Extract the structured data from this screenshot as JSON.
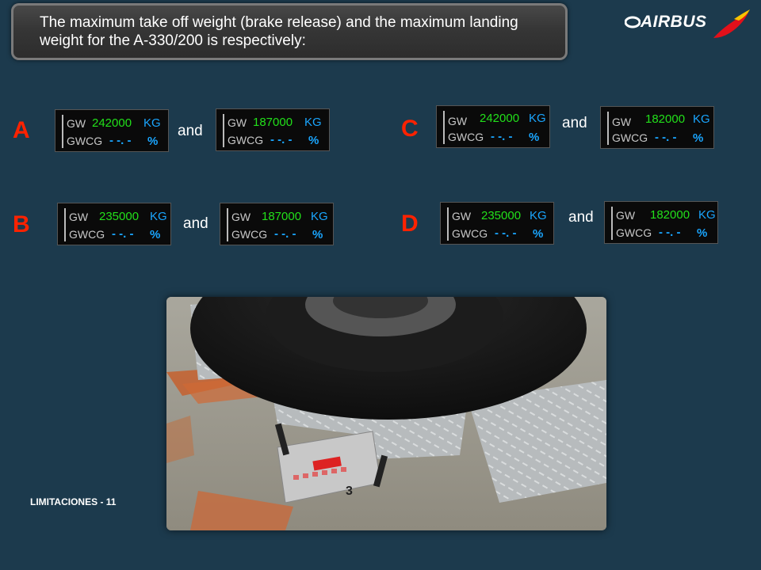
{
  "question": "The maximum take off weight (brake release) and the maximum landing weight for the A-330/200 is respectively:",
  "brand": "AIRBUS",
  "label_gw": "GW",
  "label_gwcg": "GWCG",
  "dashes": "- -. -",
  "pct": "%",
  "and_word": "and",
  "colors": {
    "value": "#22e01a",
    "unit": "#1aa6ff",
    "letter": "#ff2200",
    "background": "#1c3a4d"
  },
  "options": [
    {
      "letter": "A",
      "takeoff": {
        "value": "242000",
        "unit": "KG"
      },
      "landing": {
        "value": "187000",
        "unit": "KG"
      }
    },
    {
      "letter": "B",
      "takeoff": {
        "value": "235000",
        "unit": "KG"
      },
      "landing": {
        "value": "187000",
        "unit": "KG"
      }
    },
    {
      "letter": "C",
      "takeoff": {
        "value": "242000",
        "unit": "KG"
      },
      "landing": {
        "value": "182000",
        "unit": "KG"
      }
    },
    {
      "letter": "D",
      "takeoff": {
        "value": "235000",
        "unit": "KG"
      },
      "landing": {
        "value": "182000",
        "unit": "KG"
      }
    }
  ],
  "photo_icon": "aircraft-wheel-on-scale-photo",
  "footer": "LIMITACIONES - 11"
}
